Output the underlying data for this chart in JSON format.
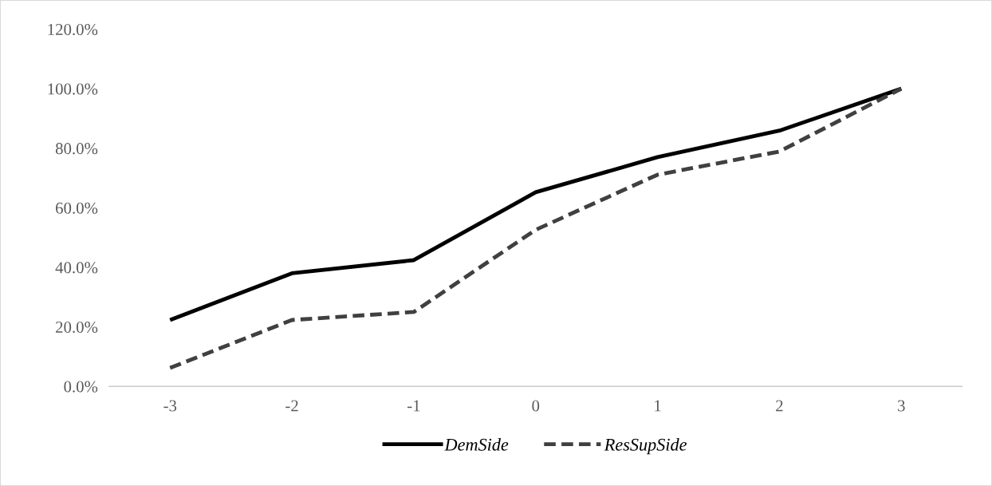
{
  "chart_data": {
    "type": "line",
    "categories": [
      "-3",
      "-2",
      "-1",
      "0",
      "1",
      "2",
      "3"
    ],
    "series": [
      {
        "name": "DemSide",
        "color": "#000000",
        "line_style": "solid",
        "values": [
          22.3,
          38.0,
          42.4,
          65.2,
          77.0,
          85.9,
          100.0
        ]
      },
      {
        "name": "ResSupSide",
        "color": "#404040",
        "line_style": "dashed",
        "values": [
          6.2,
          22.3,
          25.0,
          52.6,
          71.1,
          78.9,
          100.0
        ]
      }
    ],
    "ylim": [
      0,
      120
    ],
    "yticks": [
      {
        "value": 0,
        "label": "0.0%"
      },
      {
        "value": 20,
        "label": "20.0%"
      },
      {
        "value": 40,
        "label": "40.0%"
      },
      {
        "value": 60,
        "label": "60.0%"
      },
      {
        "value": 80,
        "label": "80.0%"
      },
      {
        "value": 100,
        "label": "100.0%"
      },
      {
        "value": 120,
        "label": "120.0%"
      }
    ],
    "grid": false,
    "legend": "bottom",
    "marker": "none"
  }
}
